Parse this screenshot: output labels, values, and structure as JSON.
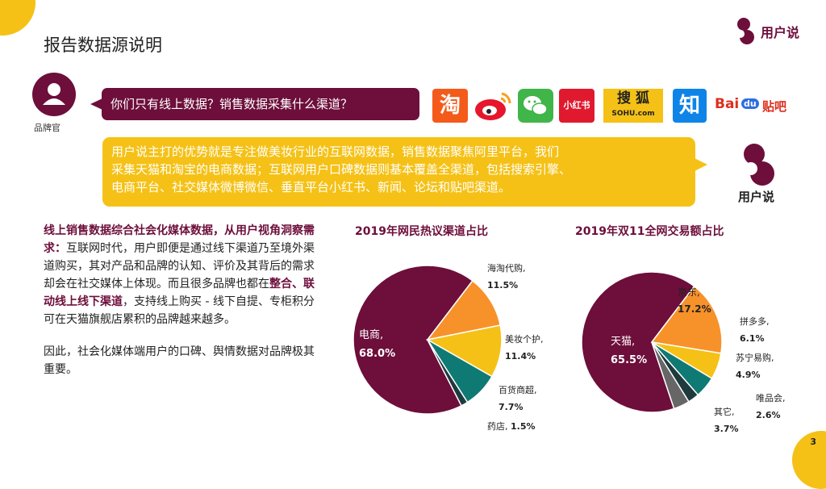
{
  "page": {
    "title": "报告数据源说明",
    "page_number": "3"
  },
  "brand": {
    "logo_text": "用户说",
    "logo_text_2": "用户说",
    "accent": "#6d0e3b",
    "highlight": "#f5c116"
  },
  "persona": {
    "label": "品牌官",
    "icon": "user-avatar-icon"
  },
  "question": "你们只有线上数据？销售数据采集什么渠道？",
  "channels": [
    {
      "name": "taobao-logo",
      "text": "淘"
    },
    {
      "name": "weibo-logo",
      "text": ""
    },
    {
      "name": "wechat-logo",
      "text": ""
    },
    {
      "name": "xiaohongshu-logo",
      "text": "小红书"
    },
    {
      "name": "sohu-logo",
      "text": "搜 狐",
      "sub": "SOHU.com"
    },
    {
      "name": "zhihu-logo",
      "text": "知"
    },
    {
      "name": "baidu-tieba-logo",
      "text": "Bai",
      "text2": "du",
      "text3": "贴吧"
    }
  ],
  "answer": {
    "line1": "用户说主打的优势就是专注做美妆行业的互联网数据，销售数据聚焦阿里平台，我们",
    "line2": "采集天猫和淘宝的电商数据；互联网用户口碑数据则基本覆盖全渠道，包括搜索引擎、",
    "line3": "电商平台、社交媒体微博微信、垂直平台小红书、新闻、论坛和贴吧渠道。"
  },
  "body": {
    "hl1": "线上销售数据综合社会化媒体数据，从用户视角洞察需求：",
    "t1": "互联网时代，用户即便是通过线下渠道乃至境外渠道购买，其对产品和品牌的认知、评价及其背后的需求却会在社交媒体上体现。而且很多品牌也都在",
    "hl2": "整合、联动线上线下渠道",
    "t2": "，支持线上购买 - 线下自提、专柜积分可在天猫旗舰店累积的品牌越来越多。",
    "p2": "因此，社会化媒体端用户的口碑、舆情数据对品牌极其重要。"
  },
  "chart_data": [
    {
      "type": "pie",
      "title": "2019年网民热议渠道占比",
      "slices": [
        {
          "name": "电商,",
          "label": "68.0%",
          "value": 68.0,
          "color": "#6d0e3b"
        },
        {
          "name": "海淘代购,",
          "label": "11.5%",
          "value": 11.5,
          "color": "#f7922a"
        },
        {
          "name": "美妆个护,",
          "label": "11.4%",
          "value": 11.4,
          "color": "#f5c116"
        },
        {
          "name": "百货商超,",
          "label": "7.7%",
          "value": 7.7,
          "color": "#0f7a73"
        },
        {
          "name": "药店,",
          "label": "1.5%",
          "value": 1.5,
          "color": "#1f3a3d"
        }
      ]
    },
    {
      "type": "pie",
      "title": "2019年双11全网交易额占比",
      "slices": [
        {
          "name": "天猫,",
          "label": "65.5%",
          "value": 65.5,
          "color": "#6d0e3b"
        },
        {
          "name": "京东,",
          "label": "17.2%",
          "value": 17.2,
          "color": "#f7922a"
        },
        {
          "name": "拼多多,",
          "label": "6.1%",
          "value": 6.1,
          "color": "#f5c116"
        },
        {
          "name": "苏宁易购,",
          "label": "4.9%",
          "value": 4.9,
          "color": "#0f7a73"
        },
        {
          "name": "唯品会,",
          "label": "2.6%",
          "value": 2.6,
          "color": "#1f3a3d"
        },
        {
          "name": "其它,",
          "label": "3.7%",
          "value": 3.7,
          "color": "#666666"
        }
      ]
    }
  ]
}
